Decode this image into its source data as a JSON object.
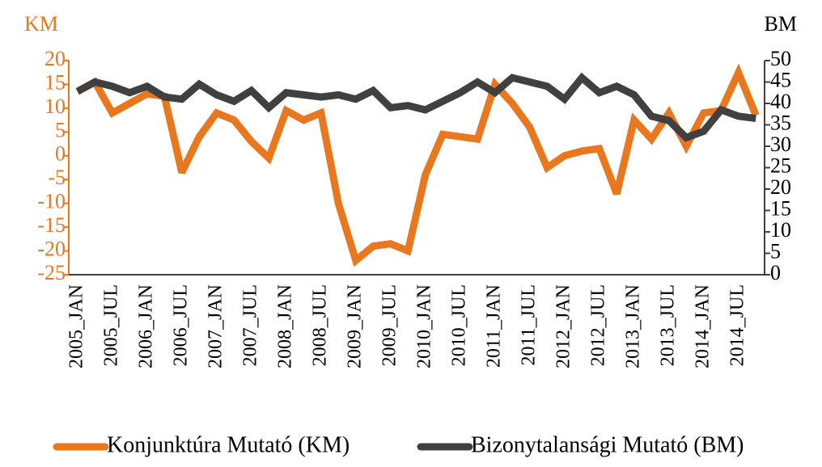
{
  "chart_data": {
    "type": "line",
    "ylabel": "KM",
    "y2label": "BM",
    "categories": [
      "2005_JAN",
      null,
      "2005_JUL",
      null,
      "2006_JAN",
      null,
      "2006_JUL",
      null,
      "2007_JAN",
      null,
      "2007_JUL",
      null,
      "2008_JAN",
      null,
      "2008_JUL",
      null,
      "2009_JAN",
      null,
      "2009_JUL",
      null,
      "2010_JAN",
      null,
      "2010_JUL",
      null,
      "2011_JAN",
      null,
      "2011_JUL",
      null,
      "2012_JAN",
      null,
      "2012_JUL",
      null,
      "2013_JAN",
      null,
      "2013_JUL",
      null,
      "2014_JAN",
      null,
      "2014_JUL",
      null
    ],
    "series": [
      {
        "name": "Konjunktúra Mutató (KM)",
        "color": "#e8771e",
        "values": [
          13.5,
          15.5,
          9,
          11,
          13,
          12.5,
          -3.5,
          4,
          9,
          7.5,
          3,
          -0.5,
          9.5,
          7.5,
          9,
          -10,
          -22,
          -19,
          -18.5,
          -20,
          -4,
          4.5,
          4,
          3.5,
          15,
          11,
          6,
          -2.5,
          0,
          1,
          1.5,
          -8,
          7.5,
          3.5,
          9,
          2,
          9,
          9.5,
          17.5,
          8.5
        ]
      },
      {
        "name": "Bizonytalansági Mutató (BM)",
        "color": "#404040",
        "axis": "y2",
        "values": [
          42.8,
          45,
          44,
          42.5,
          44,
          41.5,
          41,
          44.5,
          42,
          40.5,
          43,
          39,
          42.5,
          42,
          41.5,
          42,
          41,
          43,
          39,
          39.5,
          38.5,
          40.5,
          42.5,
          45,
          42.5,
          46,
          45,
          44,
          41,
          46,
          42.5,
          44,
          42,
          37,
          36,
          32,
          33.5,
          38.5,
          37,
          36.5
        ]
      }
    ],
    "ylim": [
      -25,
      20
    ],
    "yticks": [
      -25,
      -20,
      -15,
      -10,
      -5,
      0,
      5,
      10,
      15,
      20
    ],
    "y2lim": [
      0,
      50
    ],
    "y2ticks": [
      0,
      5,
      10,
      15,
      20,
      25,
      30,
      35,
      40,
      45,
      50
    ],
    "legend": "bottom"
  }
}
